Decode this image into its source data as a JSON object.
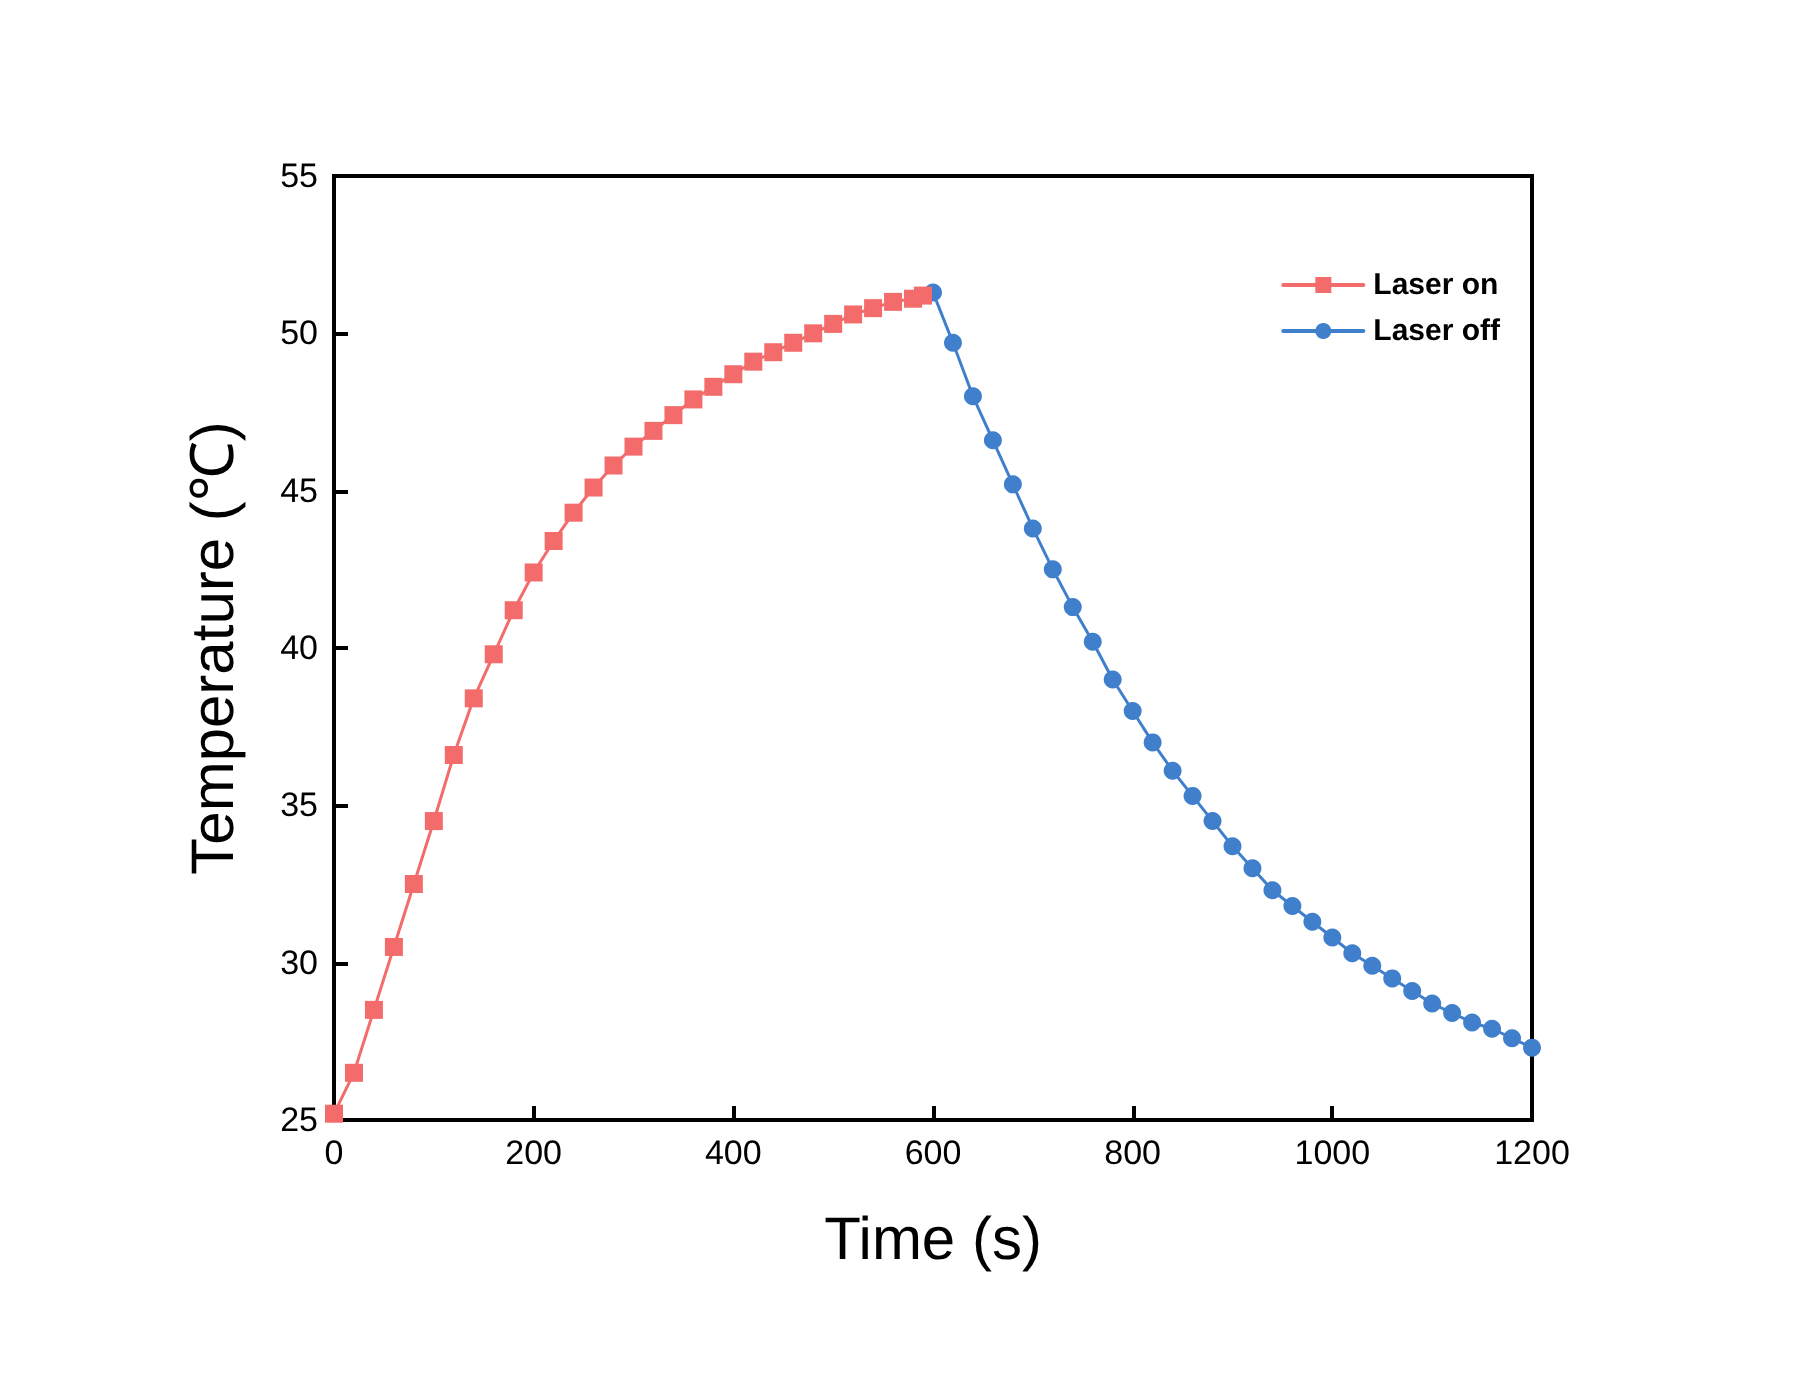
{
  "chart_data": {
    "type": "line",
    "xlabel": "Time (s)",
    "ylabel": "Temperature (℃)",
    "xlim": [
      0,
      1200
    ],
    "ylim": [
      25,
      55
    ],
    "xticks": [
      0,
      200,
      400,
      600,
      800,
      1000,
      1200
    ],
    "yticks": [
      25,
      30,
      35,
      40,
      45,
      50,
      55
    ],
    "grid": false,
    "legend": "top right",
    "line_style": "solid",
    "series": [
      {
        "name": "Laser on",
        "color": "#f36b6b",
        "marker": "square",
        "x": [
          0,
          20,
          40,
          60,
          80,
          100,
          120,
          140,
          160,
          180,
          200,
          220,
          240,
          260,
          280,
          300,
          320,
          340,
          360,
          380,
          400,
          420,
          440,
          460,
          480,
          500,
          520,
          540,
          560,
          580,
          590
        ],
        "values": [
          25.2,
          26.5,
          28.5,
          30.5,
          32.5,
          34.5,
          36.6,
          38.4,
          39.8,
          41.2,
          42.4,
          43.4,
          44.3,
          45.1,
          45.8,
          46.4,
          46.9,
          47.4,
          47.9,
          48.3,
          48.7,
          49.1,
          49.4,
          49.7,
          50.0,
          50.3,
          50.6,
          50.8,
          51.0,
          51.1,
          51.2
        ]
      },
      {
        "name": "Laser off",
        "color": "#3f7fcc",
        "marker": "circle",
        "x": [
          600,
          620,
          640,
          660,
          680,
          700,
          720,
          740,
          760,
          780,
          800,
          820,
          840,
          860,
          880,
          900,
          920,
          940,
          960,
          980,
          1000,
          1020,
          1040,
          1060,
          1080,
          1100,
          1120,
          1140,
          1160,
          1180,
          1200
        ],
        "values": [
          51.3,
          49.7,
          48.0,
          46.6,
          45.2,
          43.8,
          42.5,
          41.3,
          40.2,
          39.0,
          38.0,
          37.0,
          36.1,
          35.3,
          34.5,
          33.7,
          33.0,
          32.3,
          31.8,
          31.3,
          30.8,
          30.3,
          29.9,
          29.5,
          29.1,
          28.7,
          28.4,
          28.1,
          27.9,
          27.6,
          27.3
        ]
      }
    ]
  }
}
